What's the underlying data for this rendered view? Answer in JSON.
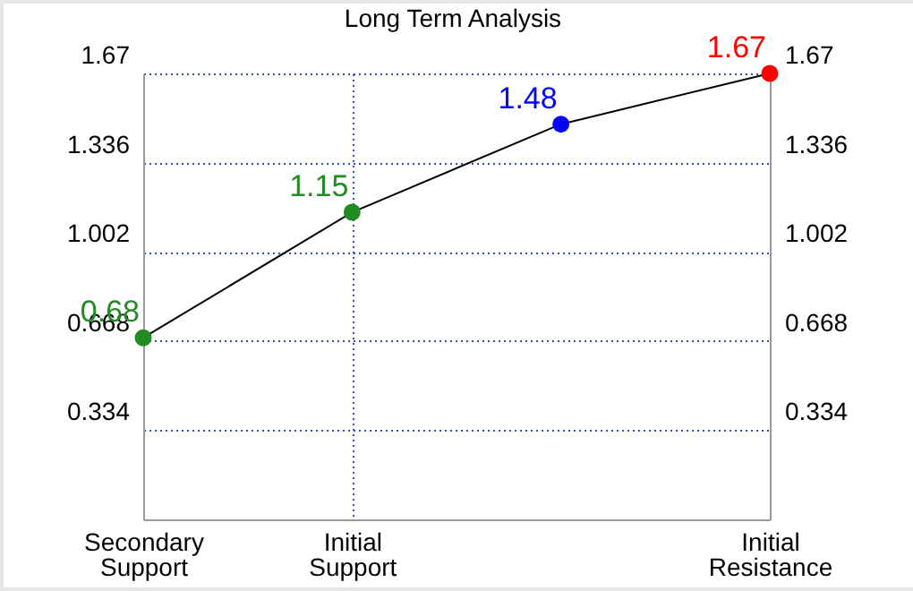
{
  "chart_data": {
    "type": "line",
    "title": "Long Term Analysis",
    "categories": [
      "Secondary Support",
      "Initial Support",
      null,
      "Initial Resistance"
    ],
    "values": [
      0.68,
      1.15,
      1.48,
      1.67
    ],
    "colors": [
      "#228b22",
      "#228b22",
      "#0000ff",
      "#ff0000"
    ],
    "data_labels": true,
    "marker": "circle",
    "grid": true,
    "ylim": [
      0,
      1.67
    ],
    "yticks": [
      0.334,
      0.668,
      1.002,
      1.336,
      1.67
    ],
    "y2lim": [
      0,
      1.67
    ],
    "y2ticks": [
      0.334,
      0.668,
      1.002,
      1.336,
      1.67
    ]
  }
}
